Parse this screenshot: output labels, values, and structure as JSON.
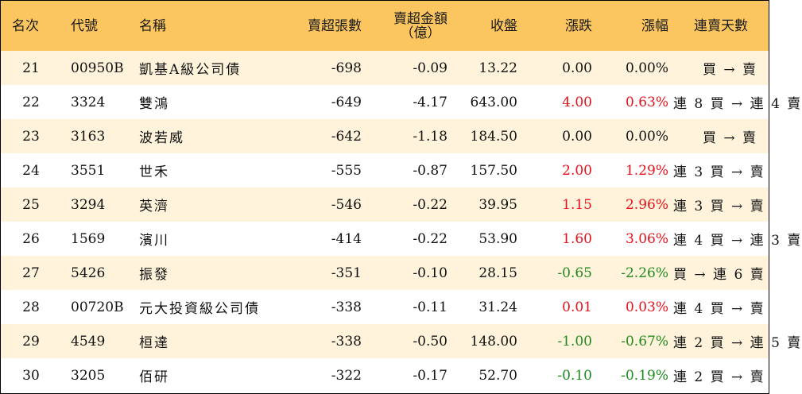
{
  "headers": {
    "rank": "名次",
    "code": "代號",
    "name": "名稱",
    "sheets": "賣超張數",
    "amount_line1": "賣超金額",
    "amount_line2": "（億）",
    "close": "收盤",
    "change": "漲跌",
    "pct": "漲幅",
    "days": "連賣天數"
  },
  "colors": {
    "header_bg": "#FBC65F",
    "odd_row_bg": "#FFF4DB",
    "even_row_bg": "#FFFFFF",
    "up": "#E8101A",
    "down": "#1E8A1E"
  },
  "rows": [
    {
      "rank": "21",
      "code": "00950B",
      "name": "凱基A級公司債",
      "sheets": "-698",
      "amount": "-0.09",
      "close": "13.22",
      "change": "0.00",
      "pct": "0.00%",
      "days": "買 → 賣",
      "dir": "flat"
    },
    {
      "rank": "22",
      "code": "3324",
      "name": "雙鴻",
      "sheets": "-649",
      "amount": "-4.17",
      "close": "643.00",
      "change": "4.00",
      "pct": "0.63%",
      "days": "連 8 買 → 連 4 賣",
      "dir": "up"
    },
    {
      "rank": "23",
      "code": "3163",
      "name": "波若威",
      "sheets": "-642",
      "amount": "-1.18",
      "close": "184.50",
      "change": "0.00",
      "pct": "0.00%",
      "days": "買 → 賣",
      "dir": "flat"
    },
    {
      "rank": "24",
      "code": "3551",
      "name": "世禾",
      "sheets": "-555",
      "amount": "-0.87",
      "close": "157.50",
      "change": "2.00",
      "pct": "1.29%",
      "days": "連 3 買 → 賣",
      "dir": "up"
    },
    {
      "rank": "25",
      "code": "3294",
      "name": "英濟",
      "sheets": "-546",
      "amount": "-0.22",
      "close": "39.95",
      "change": "1.15",
      "pct": "2.96%",
      "days": "連 3 買 → 賣",
      "dir": "up"
    },
    {
      "rank": "26",
      "code": "1569",
      "name": "濱川",
      "sheets": "-414",
      "amount": "-0.22",
      "close": "53.90",
      "change": "1.60",
      "pct": "3.06%",
      "days": "連 4 買 → 連 3 賣",
      "dir": "up"
    },
    {
      "rank": "27",
      "code": "5426",
      "name": "振發",
      "sheets": "-351",
      "amount": "-0.10",
      "close": "28.15",
      "change": "-0.65",
      "pct": "-2.26%",
      "days": "買 → 連 6 賣",
      "dir": "down"
    },
    {
      "rank": "28",
      "code": "00720B",
      "name": "元大投資級公司債",
      "sheets": "-338",
      "amount": "-0.11",
      "close": "31.24",
      "change": "0.01",
      "pct": "0.03%",
      "days": "連 4 買 → 賣",
      "dir": "up"
    },
    {
      "rank": "29",
      "code": "4549",
      "name": "桓達",
      "sheets": "-338",
      "amount": "-0.50",
      "close": "148.00",
      "change": "-1.00",
      "pct": "-0.67%",
      "days": "連 2 買 → 連 5 賣",
      "dir": "down"
    },
    {
      "rank": "30",
      "code": "3205",
      "name": "佰研",
      "sheets": "-322",
      "amount": "-0.17",
      "close": "52.70",
      "change": "-0.10",
      "pct": "-0.19%",
      "days": "連 2 買 → 賣",
      "dir": "down"
    }
  ]
}
